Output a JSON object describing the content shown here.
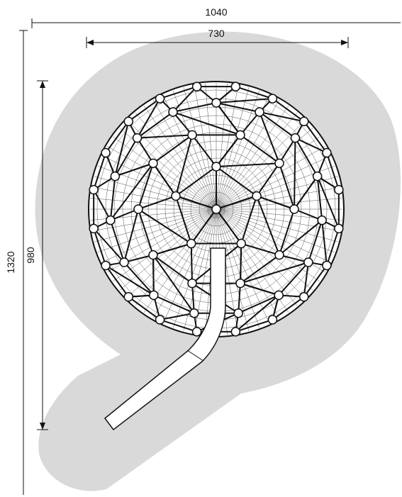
{
  "dimensions": {
    "overall_width": "1040",
    "structure_width": "730",
    "overall_length": "1320",
    "structure_length": "980"
  },
  "colors": {
    "safety_zone": "#d9d9d9",
    "line": "#111111",
    "slide_fill": "#ffffff",
    "joint_fill": "#ffffff"
  },
  "elements": {
    "safety_zone": "safety-zone",
    "dome": "climbing-dome",
    "slide": "slide-chute"
  }
}
